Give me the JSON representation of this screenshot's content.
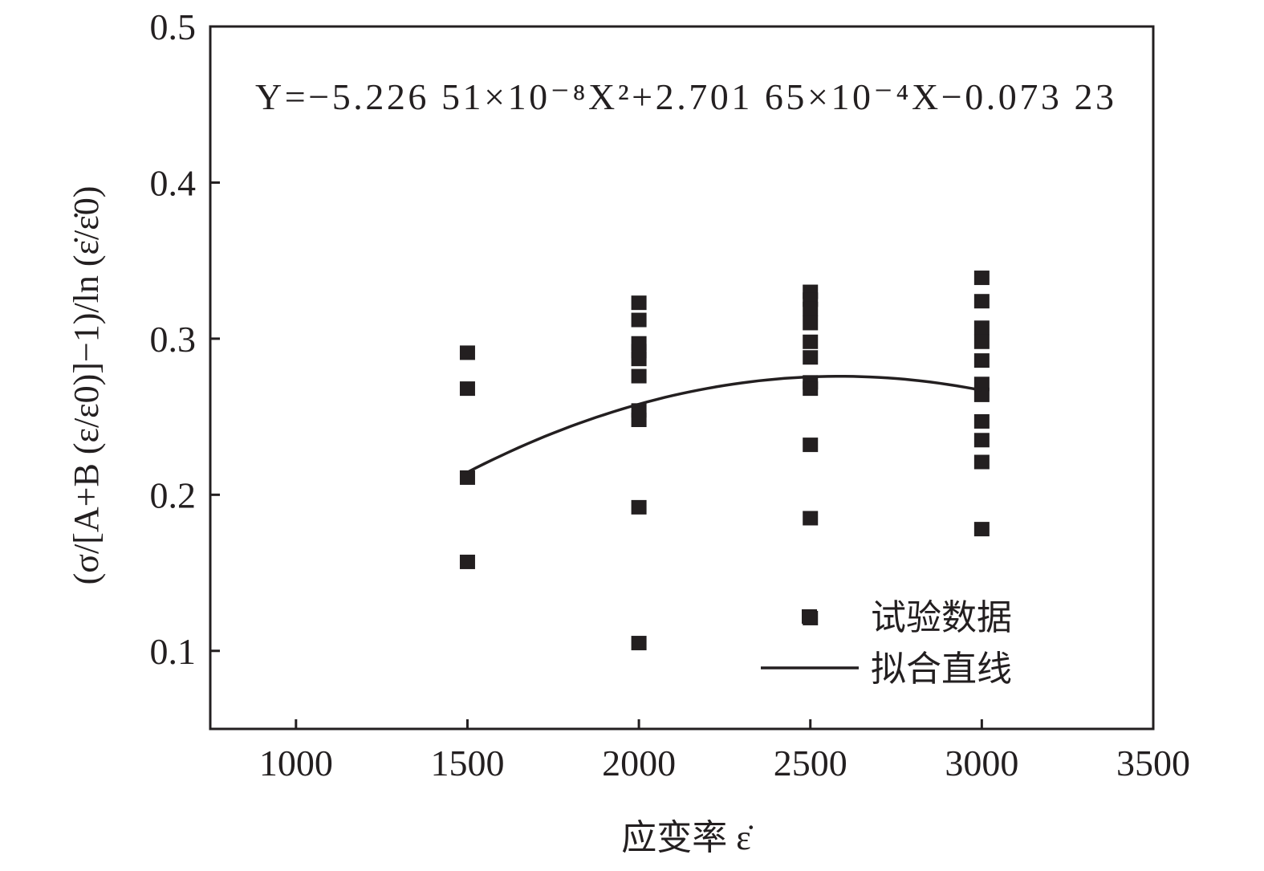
{
  "chart_data": {
    "type": "scatter",
    "title": "",
    "xlabel": "应变率 ε̇",
    "ylabel": "(σ/[A+B (ε/ε0)]−1)/ln (ε̇/ε̇0)",
    "xlim": [
      750,
      3500
    ],
    "ylim": [
      0.05,
      0.5
    ],
    "xticks": [
      1000,
      1500,
      2000,
      2500,
      3000,
      3500
    ],
    "yticks": [
      0.1,
      0.2,
      0.3,
      0.4,
      0.5
    ],
    "xtick_labels": [
      "1000",
      "1500",
      "2000",
      "2500",
      "3000",
      "3500"
    ],
    "ytick_labels": [
      "0.1",
      "0.2",
      "0.3",
      "0.4",
      "0.5"
    ],
    "grid": false,
    "legend_position": "bottom-right",
    "colors": {
      "marker": "#231f20",
      "line": "#231f20"
    },
    "equation": {
      "text": "Y=−5.226 51×10⁻⁸X²+2.701 65×10⁻⁴X−0.073 23",
      "coefficients": {
        "a": -5.22651e-08,
        "b": 0.000270165,
        "c": -0.07323
      }
    },
    "series": [
      {
        "name": "试验数据",
        "type": "scatter",
        "points": [
          [
            1500,
            0.291
          ],
          [
            1500,
            0.268
          ],
          [
            1500,
            0.211
          ],
          [
            1500,
            0.157
          ],
          [
            2000,
            0.323
          ],
          [
            2000,
            0.312
          ],
          [
            2000,
            0.297
          ],
          [
            2000,
            0.292
          ],
          [
            2000,
            0.287
          ],
          [
            2000,
            0.276
          ],
          [
            2000,
            0.254
          ],
          [
            2000,
            0.248
          ],
          [
            2000,
            0.192
          ],
          [
            2000,
            0.105
          ],
          [
            2500,
            0.33
          ],
          [
            2500,
            0.325
          ],
          [
            2500,
            0.319
          ],
          [
            2500,
            0.31
          ],
          [
            2500,
            0.298
          ],
          [
            2500,
            0.288
          ],
          [
            2500,
            0.272
          ],
          [
            2500,
            0.268
          ],
          [
            2500,
            0.232
          ],
          [
            2500,
            0.185
          ],
          [
            2500,
            0.121
          ],
          [
            3000,
            0.339
          ],
          [
            3000,
            0.324
          ],
          [
            3000,
            0.307
          ],
          [
            3000,
            0.298
          ],
          [
            3000,
            0.286
          ],
          [
            3000,
            0.271
          ],
          [
            3000,
            0.264
          ],
          [
            3000,
            0.247
          ],
          [
            3000,
            0.235
          ],
          [
            3000,
            0.221
          ],
          [
            3000,
            0.178
          ]
        ]
      },
      {
        "name": "拟合直线",
        "type": "line",
        "x_range": [
          1500,
          3000
        ]
      }
    ]
  }
}
